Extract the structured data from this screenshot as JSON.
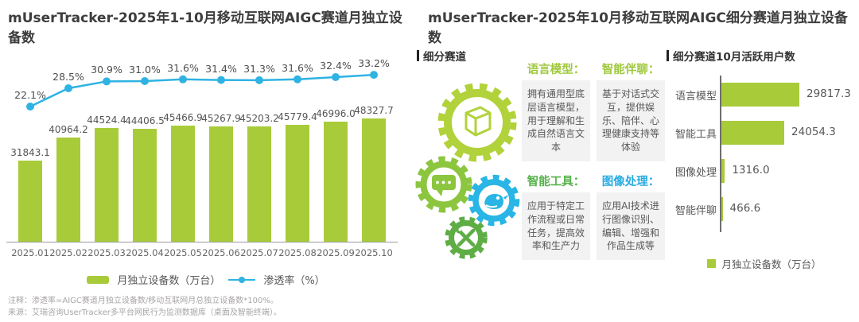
{
  "left_panel": {
    "title": "mUserTracker-2025年1-10月移动互联网AIGC赛道月独立设备数",
    "legend": {
      "bars": "月独立设备数（万台）",
      "line": "渗透率（%）"
    },
    "chart_data": {
      "type": "bar+line",
      "categories": [
        "2025.01",
        "2025.02",
        "2025.03",
        "2025.04",
        "2025.05",
        "2025.06",
        "2025.07",
        "2025.08",
        "2025.09",
        "2025.10"
      ],
      "series": [
        {
          "name": "月独立设备数（万台）",
          "type": "bar",
          "values": [
            31843.1,
            40964.2,
            44524.4,
            44406.5,
            45466.9,
            45267.9,
            45203.2,
            45779.4,
            46996.0,
            48327.7
          ],
          "labels": [
            "31843.1",
            "40964.2",
            "44524.4",
            "44406.5",
            "45466.9",
            "45267.9",
            "45203.2",
            "45779.4",
            "46996.0",
            "48327.7"
          ]
        },
        {
          "name": "渗透率（%）",
          "type": "line",
          "values": [
            22.1,
            28.5,
            30.9,
            31.0,
            31.6,
            31.4,
            31.3,
            31.6,
            32.4,
            33.2
          ],
          "labels": [
            "22.1%",
            "28.5%",
            "30.9%",
            "31.0%",
            "31.6%",
            "31.4%",
            "31.3%",
            "31.6%",
            "32.4%",
            "33.2%"
          ]
        }
      ],
      "bar_color": "#a8cb3a",
      "line_color": "#2fb3e3"
    }
  },
  "right_panel": {
    "title": "mUserTracker-2025年10月移动互联网AIGC细分赛道月独立设备数",
    "segments_header": "细分赛道",
    "cards": [
      {
        "title": "语言模型：",
        "color": "#9fc83c",
        "body": "拥有通用型底层语言模型，用于理解和生成自然语言文本"
      },
      {
        "title": "智能伴聊：",
        "color": "#9fc83c",
        "body": "基于对话式交互，提供娱乐、陪伴、心理健康支持等体验"
      },
      {
        "title": "智能工具：",
        "color": "#55b24a",
        "body": "应用于特定工作流程或日常任务，提高效率和生产力"
      },
      {
        "title": "图像处理：",
        "color": "#29abe2",
        "body": "应用AI技术进行图像识别、编辑、增强和作品生成等"
      }
    ],
    "chart_header": "细分赛道10月活跃用户数",
    "legend": "月独立设备数（万台）",
    "chart_data": {
      "type": "bar",
      "orientation": "horizontal",
      "categories": [
        "语言模型",
        "智能工具",
        "图像处理",
        "智能伴聊"
      ],
      "values": [
        29817.3,
        24054.3,
        1316.0,
        466.6
      ],
      "labels": [
        "29817.3",
        "24054.3",
        "1316.0",
        "466.6"
      ],
      "bar_color": "#a8cb3a"
    }
  },
  "footnotes": {
    "note": "注释：渗透率=AIGC赛道月独立设备数/移动互联网月总独立设备数*100%。",
    "source": "来源：艾瑞咨询UserTracker多平台网民行为监测数据库（桌面及智能终端）。"
  }
}
